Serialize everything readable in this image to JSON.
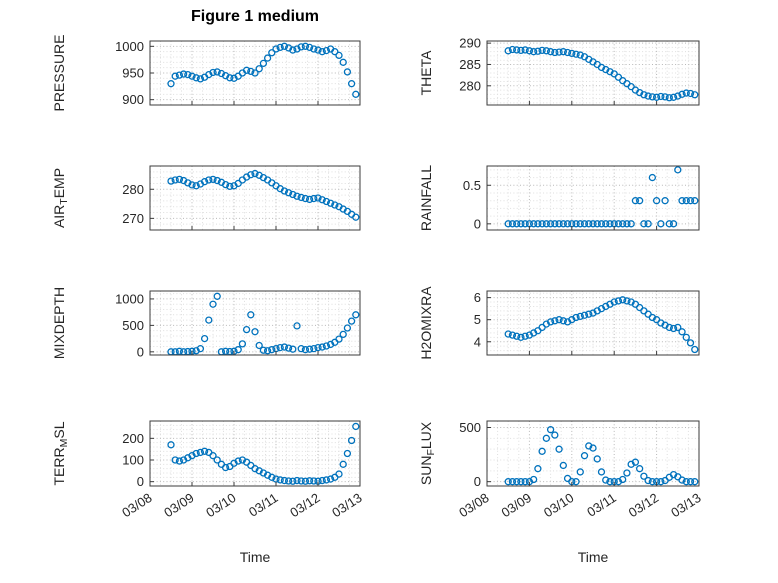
{
  "figure_title": "Figure 1 medium",
  "xlabel": "Time",
  "marker_color": "#0072BD",
  "xlim": [
    0,
    5
  ],
  "x_ticks": [
    0,
    1,
    2,
    3,
    4,
    5
  ],
  "x_tick_labels": [
    "03/08",
    "03/09",
    "03/10",
    "03/11",
    "03/12",
    "03/13"
  ],
  "x": [
    0.5,
    0.6,
    0.7,
    0.8,
    0.9,
    1.0,
    1.1,
    1.2,
    1.3,
    1.4,
    1.5,
    1.6,
    1.7,
    1.8,
    1.9,
    2.0,
    2.1,
    2.2,
    2.3,
    2.4,
    2.5,
    2.6,
    2.7,
    2.8,
    2.9,
    3.0,
    3.1,
    3.2,
    3.3,
    3.4,
    3.5,
    3.6,
    3.7,
    3.8,
    3.9,
    4.0,
    4.1,
    4.2,
    4.3,
    4.4,
    4.5,
    4.6,
    4.7,
    4.8,
    4.9
  ],
  "chart_data": [
    {
      "id": "pressure",
      "type": "scatter",
      "ylabel_parts": [
        [
          "PRESSURE",
          false
        ]
      ],
      "ylim": [
        890,
        1010
      ],
      "yticks": [
        900,
        950,
        1000
      ],
      "values": [
        930,
        944,
        946,
        948,
        947,
        944,
        941,
        939,
        942,
        947,
        951,
        952,
        949,
        945,
        941,
        940,
        944,
        950,
        955,
        953,
        950,
        958,
        968,
        978,
        988,
        995,
        998,
        1000,
        997,
        993,
        995,
        999,
        1000,
        998,
        995,
        993,
        990,
        992,
        995,
        990,
        983,
        970,
        952,
        930,
        910
      ]
    },
    {
      "id": "theta",
      "type": "scatter",
      "ylabel_parts": [
        [
          "THETA",
          false
        ]
      ],
      "ylim": [
        275.5,
        290.5
      ],
      "yticks": [
        280,
        285,
        290
      ],
      "values": [
        288.2,
        288.5,
        288.4,
        288.3,
        288.4,
        288.2,
        288.0,
        288.1,
        288.3,
        288.2,
        288.0,
        287.8,
        287.9,
        288.0,
        287.8,
        287.6,
        287.4,
        287.2,
        286.8,
        286.2,
        285.6,
        285.0,
        284.3,
        283.8,
        283.3,
        282.8,
        282.0,
        281.2,
        280.5,
        279.8,
        279.0,
        278.4,
        277.9,
        277.6,
        277.4,
        277.3,
        277.5,
        277.4,
        277.2,
        277.3,
        277.6,
        278.0,
        278.3,
        278.2,
        277.9
      ]
    },
    {
      "id": "air-temp",
      "type": "scatter",
      "ylabel_parts": [
        [
          "AIR",
          false
        ],
        [
          "T",
          true
        ],
        [
          "EMP",
          false
        ]
      ],
      "ylim": [
        266,
        288
      ],
      "yticks": [
        270,
        280
      ],
      "values": [
        282.8,
        283.2,
        283.4,
        283.0,
        282.2,
        281.5,
        281.2,
        281.8,
        282.6,
        283.2,
        283.4,
        283.0,
        282.4,
        281.6,
        281.0,
        281.2,
        282.0,
        283.2,
        284.2,
        285.0,
        285.4,
        284.8,
        284.0,
        283.2,
        282.2,
        281.2,
        280.2,
        279.4,
        278.8,
        278.2,
        277.6,
        277.2,
        276.8,
        276.5,
        276.8,
        277.0,
        276.4,
        275.8,
        275.2,
        274.6,
        274.0,
        273.2,
        272.4,
        271.4,
        270.4
      ]
    },
    {
      "id": "rainfall",
      "type": "scatter",
      "ylabel_parts": [
        [
          "RAINFALL",
          false
        ]
      ],
      "ylim": [
        -0.08,
        0.75
      ],
      "yticks": [
        0,
        0.5
      ],
      "values": [
        0,
        0,
        0,
        0,
        0,
        0,
        0,
        0,
        0,
        0,
        0,
        0,
        0,
        0,
        0,
        0,
        0,
        0,
        0,
        0,
        0,
        0,
        0,
        0,
        0,
        0,
        0,
        0,
        0,
        0,
        0.3,
        0.3,
        0,
        0,
        0.6,
        0.3,
        0,
        0.3,
        0,
        0,
        0.7,
        0.3,
        0.3,
        0.3,
        0.3
      ]
    },
    {
      "id": "mixdepth",
      "type": "scatter",
      "ylabel_parts": [
        [
          "MIXDEPTH",
          false
        ]
      ],
      "ylim": [
        -60,
        1150
      ],
      "yticks": [
        0,
        500,
        1000
      ],
      "values": [
        0,
        0,
        10,
        0,
        5,
        10,
        20,
        60,
        250,
        600,
        900,
        1050,
        0,
        10,
        5,
        10,
        40,
        150,
        420,
        700,
        380,
        120,
        30,
        20,
        40,
        60,
        80,
        90,
        70,
        50,
        490,
        60,
        40,
        50,
        60,
        80,
        90,
        110,
        140,
        180,
        240,
        330,
        450,
        580,
        700
      ]
    },
    {
      "id": "h2omixra",
      "type": "scatter",
      "ylabel_parts": [
        [
          "H2OMIXRA",
          false
        ]
      ],
      "ylim": [
        3.4,
        6.3
      ],
      "yticks": [
        4,
        5,
        6
      ],
      "values": [
        4.35,
        4.3,
        4.25,
        4.2,
        4.25,
        4.3,
        4.4,
        4.5,
        4.65,
        4.8,
        4.9,
        4.95,
        5.0,
        4.95,
        4.9,
        5.0,
        5.1,
        5.15,
        5.2,
        5.25,
        5.3,
        5.4,
        5.5,
        5.6,
        5.7,
        5.8,
        5.85,
        5.9,
        5.85,
        5.8,
        5.7,
        5.55,
        5.4,
        5.25,
        5.1,
        5.0,
        4.85,
        4.75,
        4.65,
        4.6,
        4.65,
        4.45,
        4.2,
        3.95,
        3.65
      ]
    },
    {
      "id": "terr-msl",
      "type": "scatter",
      "ylabel_parts": [
        [
          "TERR",
          false
        ],
        [
          "M",
          true
        ],
        [
          "SL",
          false
        ]
      ],
      "ylim": [
        -20,
        280
      ],
      "yticks": [
        0,
        100,
        200
      ],
      "values": [
        170,
        100,
        95,
        100,
        110,
        120,
        130,
        135,
        140,
        135,
        120,
        100,
        80,
        65,
        70,
        85,
        95,
        100,
        90,
        75,
        60,
        50,
        40,
        30,
        20,
        12,
        8,
        5,
        3,
        2,
        5,
        3,
        2,
        4,
        3,
        2,
        5,
        8,
        12,
        20,
        35,
        80,
        130,
        190,
        255
      ]
    },
    {
      "id": "sun-flux",
      "type": "scatter",
      "ylabel_parts": [
        [
          "SUN",
          false
        ],
        [
          "F",
          true
        ],
        [
          "LUX",
          false
        ]
      ],
      "ylim": [
        -40,
        560
      ],
      "yticks": [
        0,
        500
      ],
      "values": [
        0,
        0,
        0,
        0,
        0,
        0,
        20,
        120,
        280,
        400,
        480,
        430,
        300,
        150,
        30,
        0,
        0,
        90,
        240,
        330,
        310,
        210,
        90,
        15,
        0,
        0,
        0,
        20,
        80,
        160,
        180,
        120,
        50,
        10,
        0,
        0,
        0,
        10,
        40,
        65,
        45,
        15,
        0,
        0,
        0
      ]
    }
  ]
}
